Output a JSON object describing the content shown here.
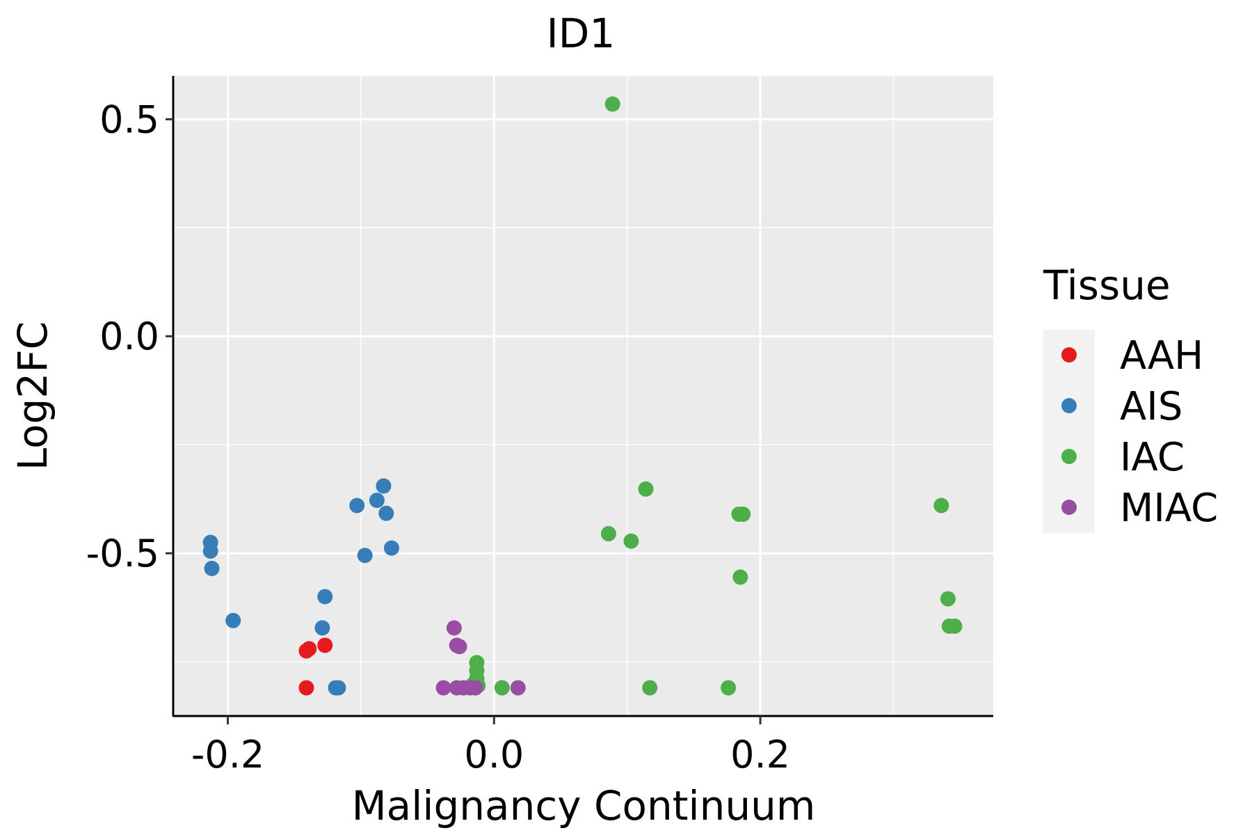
{
  "chart_data": {
    "type": "scatter",
    "title": "ID1",
    "xlabel": "Malignancy Continuum",
    "ylabel": "Log2FC",
    "xlim": [
      -0.24,
      0.375
    ],
    "ylim": [
      -0.875,
      0.6
    ],
    "x_ticks": [
      -0.2,
      0.0,
      0.2
    ],
    "x_tick_labels": [
      "-0.2",
      "0.0",
      "0.2"
    ],
    "y_ticks": [
      -0.5,
      0.0,
      0.5
    ],
    "y_tick_labels": [
      "-0.5",
      "0.0",
      "0.5"
    ],
    "grid": true,
    "legend": {
      "title": "Tissue",
      "position": "right"
    },
    "series": [
      {
        "name": "AAH",
        "color": "#E41A1C",
        "points": [
          [
            -0.141,
            -0.725
          ],
          [
            -0.139,
            -0.72
          ],
          [
            -0.127,
            -0.712
          ],
          [
            -0.141,
            -0.81
          ]
        ]
      },
      {
        "name": "AIS",
        "color": "#377EB8",
        "points": [
          [
            -0.213,
            -0.475
          ],
          [
            -0.213,
            -0.495
          ],
          [
            -0.212,
            -0.535
          ],
          [
            -0.196,
            -0.655
          ],
          [
            -0.127,
            -0.6
          ],
          [
            -0.129,
            -0.672
          ],
          [
            -0.119,
            -0.81
          ],
          [
            -0.117,
            -0.81
          ],
          [
            -0.103,
            -0.39
          ],
          [
            -0.088,
            -0.378
          ],
          [
            -0.083,
            -0.345
          ],
          [
            -0.081,
            -0.408
          ],
          [
            -0.097,
            -0.505
          ],
          [
            -0.077,
            -0.488
          ]
        ]
      },
      {
        "name": "IAC",
        "color": "#4DAF4A",
        "points": [
          [
            0.089,
            0.535
          ],
          [
            0.114,
            -0.352
          ],
          [
            0.086,
            -0.455
          ],
          [
            0.103,
            -0.472
          ],
          [
            0.117,
            -0.81
          ],
          [
            0.184,
            -0.41
          ],
          [
            0.187,
            -0.41
          ],
          [
            0.185,
            -0.555
          ],
          [
            0.176,
            -0.81
          ],
          [
            0.336,
            -0.39
          ],
          [
            0.341,
            -0.605
          ],
          [
            0.342,
            -0.668
          ],
          [
            0.346,
            -0.668
          ],
          [
            -0.013,
            -0.752
          ],
          [
            -0.013,
            -0.77
          ],
          [
            -0.013,
            -0.788
          ],
          [
            -0.016,
            -0.803
          ],
          [
            -0.012,
            -0.805
          ],
          [
            0.006,
            -0.81
          ]
        ]
      },
      {
        "name": "MIAC",
        "color": "#984EA3",
        "points": [
          [
            -0.03,
            -0.672
          ],
          [
            -0.028,
            -0.712
          ],
          [
            -0.026,
            -0.715
          ],
          [
            -0.038,
            -0.81
          ],
          [
            -0.028,
            -0.81
          ],
          [
            -0.023,
            -0.81
          ],
          [
            -0.018,
            -0.81
          ],
          [
            -0.014,
            -0.81
          ],
          [
            0.018,
            -0.81
          ]
        ]
      }
    ]
  }
}
